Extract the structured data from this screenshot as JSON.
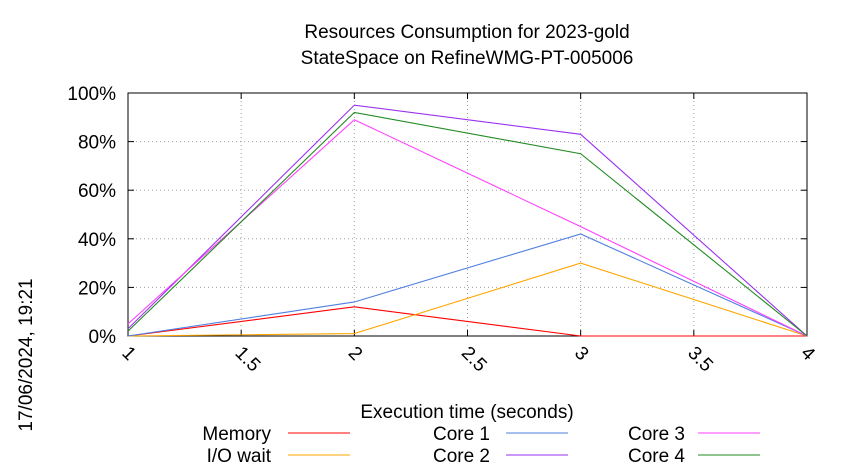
{
  "chart_data": {
    "type": "line",
    "title_line1": "Resources Consumption for 2023-gold",
    "title_line2": "StateSpace on RefineWMG-PT-005006",
    "xlabel": "Execution time (seconds)",
    "ylabel": "",
    "side_label": "17/06/2024, 19:21",
    "x": [
      1,
      2,
      3,
      4
    ],
    "xlim": [
      1,
      4
    ],
    "ylim": [
      0,
      100
    ],
    "x_ticks": [
      "1",
      "1.5",
      "2",
      "2.5",
      "3",
      "3.5",
      "4"
    ],
    "y_ticks": [
      "0%",
      "20%",
      "40%",
      "60%",
      "80%",
      "100%"
    ],
    "grid": true,
    "legend_position": "bottom",
    "series": [
      {
        "name": "Memory",
        "color": "#ff0000",
        "values": [
          0,
          12,
          0,
          0
        ]
      },
      {
        "name": "I/O wait",
        "color": "#ffa500",
        "values": [
          0,
          1,
          30,
          0
        ]
      },
      {
        "name": "Core 1",
        "color": "#4f7fdf",
        "values": [
          0,
          14,
          42,
          0
        ]
      },
      {
        "name": "Core 2",
        "color": "#9a32f0",
        "values": [
          3,
          95,
          83,
          0
        ]
      },
      {
        "name": "Core 3",
        "color": "#ff40ff",
        "values": [
          5,
          89,
          45,
          0
        ]
      },
      {
        "name": "Core 4",
        "color": "#228b22",
        "values": [
          2,
          92,
          75,
          0
        ]
      }
    ]
  }
}
